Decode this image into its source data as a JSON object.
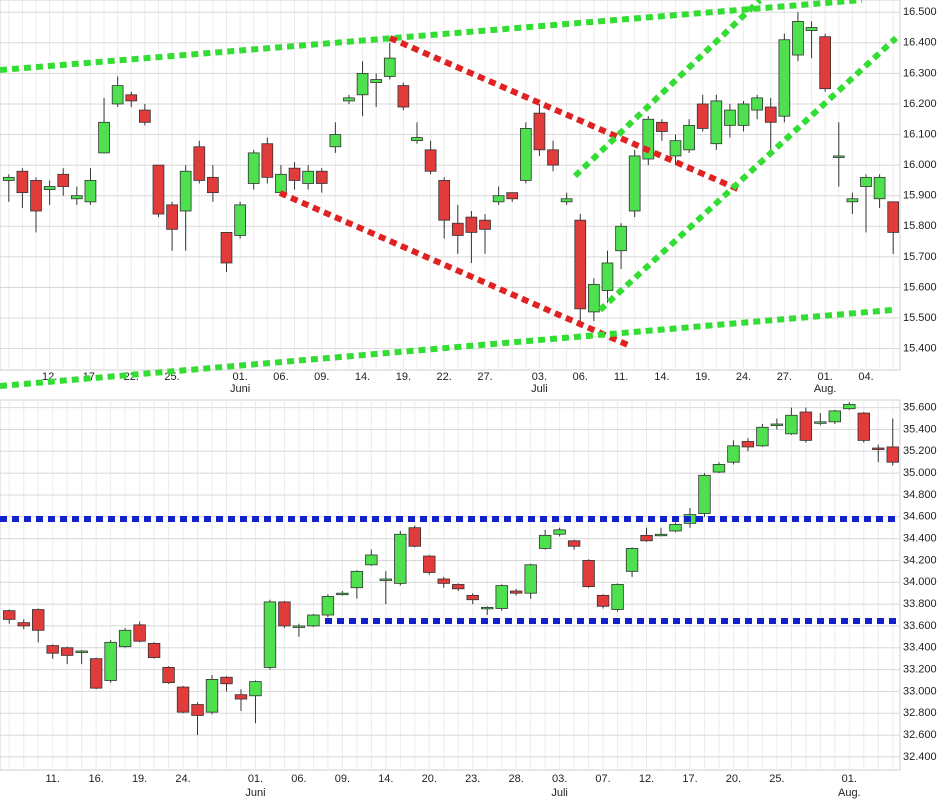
{
  "chart_data": [
    {
      "type": "candlestick",
      "categories": [
        null,
        null,
        null,
        "12.",
        null,
        null,
        "17.",
        null,
        null,
        "22.",
        null,
        null,
        "25.",
        null,
        null,
        null,
        null,
        "01.",
        null,
        null,
        "06.",
        null,
        null,
        "09.",
        null,
        null,
        "14.",
        null,
        null,
        "19.",
        null,
        null,
        "22.",
        null,
        null,
        "27.",
        null,
        null,
        null,
        "03.",
        null,
        null,
        "06.",
        null,
        null,
        "11.",
        null,
        null,
        "14.",
        null,
        null,
        "19.",
        null,
        null,
        "24.",
        null,
        null,
        "27.",
        null,
        null,
        "01.",
        null,
        null,
        "04.",
        null,
        null
      ],
      "months": [
        null,
        null,
        null,
        null,
        null,
        null,
        null,
        null,
        null,
        null,
        null,
        null,
        null,
        null,
        null,
        null,
        null,
        "Juni",
        null,
        null,
        null,
        null,
        null,
        null,
        null,
        null,
        null,
        null,
        null,
        null,
        null,
        null,
        null,
        null,
        null,
        null,
        null,
        null,
        null,
        "Juli",
        null,
        null,
        null,
        null,
        null,
        null,
        null,
        null,
        null,
        null,
        null,
        null,
        null,
        null,
        null,
        null,
        null,
        null,
        null,
        null,
        "Aug.",
        null,
        null,
        null,
        null,
        null
      ],
      "open": [
        15.95,
        15.98,
        15.95,
        15.92,
        15.97,
        15.89,
        15.88,
        16.04,
        16.2,
        16.23,
        16.18,
        16.0,
        15.87,
        15.85,
        16.06,
        15.96,
        15.78,
        15.77,
        15.94,
        16.07,
        15.91,
        15.99,
        15.94,
        15.98,
        16.06,
        16.21,
        16.23,
        16.27,
        16.29,
        16.26,
        16.08,
        16.05,
        15.95,
        15.81,
        15.83,
        15.82,
        15.88,
        15.91,
        15.95,
        16.17,
        16.05,
        15.88,
        15.82,
        15.52,
        15.59,
        15.72,
        15.85,
        16.02,
        16.14,
        16.03,
        16.05,
        16.2,
        16.07,
        16.13,
        16.13,
        16.18,
        16.19,
        16.16,
        16.36,
        16.44,
        16.42,
        16.03,
        15.88,
        15.93,
        15.89,
        15.88
      ],
      "high": [
        15.97,
        15.99,
        15.96,
        15.95,
        15.99,
        15.93,
        15.99,
        16.22,
        16.29,
        16.24,
        16.2,
        16.0,
        15.88,
        16.0,
        16.08,
        16.0,
        15.78,
        15.88,
        16.05,
        16.09,
        16.0,
        16.01,
        16.0,
        15.99,
        16.14,
        16.23,
        16.34,
        16.3,
        16.4,
        16.27,
        16.14,
        16.08,
        15.96,
        15.87,
        15.85,
        15.84,
        15.93,
        15.91,
        16.14,
        16.2,
        16.08,
        15.91,
        15.84,
        15.63,
        15.72,
        15.81,
        16.05,
        16.16,
        16.15,
        16.1,
        16.15,
        16.23,
        16.23,
        16.2,
        16.21,
        16.23,
        16.22,
        16.43,
        16.5,
        16.47,
        16.43,
        16.14,
        15.91,
        15.97,
        15.97,
        15.88
      ],
      "low": [
        15.88,
        15.86,
        15.78,
        15.87,
        15.9,
        15.87,
        15.87,
        16.04,
        16.19,
        16.19,
        16.13,
        15.83,
        15.72,
        15.72,
        15.94,
        15.88,
        15.65,
        15.76,
        15.92,
        15.94,
        15.91,
        15.92,
        15.92,
        15.91,
        16.04,
        16.2,
        16.16,
        16.19,
        16.28,
        16.18,
        16.07,
        15.97,
        15.76,
        15.71,
        15.68,
        15.71,
        15.87,
        15.88,
        15.94,
        16.03,
        15.98,
        15.87,
        15.48,
        15.49,
        15.55,
        15.66,
        15.83,
        16.0,
        16.08,
        16.0,
        16.04,
        16.11,
        16.05,
        16.09,
        16.11,
        16.15,
        16.03,
        16.14,
        16.34,
        16.35,
        16.24,
        15.93,
        15.84,
        15.78,
        15.86,
        15.71
      ],
      "close": [
        15.96,
        15.91,
        15.85,
        15.93,
        15.93,
        15.9,
        15.95,
        16.14,
        16.26,
        16.21,
        16.14,
        15.84,
        15.79,
        15.98,
        15.95,
        15.91,
        15.68,
        15.87,
        16.04,
        15.96,
        15.97,
        15.95,
        15.98,
        15.94,
        16.1,
        16.22,
        16.3,
        16.28,
        16.35,
        16.19,
        16.09,
        15.98,
        15.82,
        15.77,
        15.78,
        15.79,
        15.9,
        15.89,
        16.12,
        16.05,
        16.0,
        15.89,
        15.53,
        15.61,
        15.68,
        15.8,
        16.03,
        16.15,
        16.11,
        16.08,
        16.13,
        16.12,
        16.21,
        16.18,
        16.2,
        16.22,
        16.14,
        16.41,
        16.47,
        16.45,
        16.25,
        16.03,
        15.89,
        15.96,
        15.96,
        15.78
      ],
      "ylim": [
        15.33,
        16.54
      ],
      "yticks": [
        {
          "value": 15.4,
          "label": "15.400"
        },
        {
          "value": 15.5,
          "label": "15.500"
        },
        {
          "value": 15.6,
          "label": "15.600"
        },
        {
          "value": 15.7,
          "label": "15.700"
        },
        {
          "value": 15.8,
          "label": "15.800"
        },
        {
          "value": 15.9,
          "label": "15.900"
        },
        {
          "value": 16,
          "label": "16.000"
        },
        {
          "value": 16.1,
          "label": "16.100"
        },
        {
          "value": 16.2,
          "label": "16.200"
        },
        {
          "value": 16.3,
          "label": "16.300"
        },
        {
          "value": 16.4,
          "label": "16.400"
        },
        {
          "value": 16.5,
          "label": "16.500"
        }
      ],
      "up_color": "#4ee04e",
      "down_color": "#e23b3b",
      "grid": true
    },
    {
      "type": "candlestick",
      "categories": [
        null,
        null,
        null,
        "11.",
        null,
        null,
        "16.",
        null,
        null,
        "19.",
        null,
        null,
        "24.",
        null,
        null,
        null,
        null,
        "01.",
        null,
        null,
        "06.",
        null,
        null,
        "09.",
        null,
        null,
        "14.",
        null,
        null,
        "20.",
        null,
        null,
        "23.",
        null,
        null,
        "28.",
        null,
        null,
        "03.",
        null,
        null,
        "07.",
        null,
        null,
        "12.",
        null,
        null,
        "17.",
        null,
        null,
        "20.",
        null,
        null,
        "25.",
        null,
        null,
        null,
        null,
        "01.",
        null,
        null,
        null
      ],
      "months": [
        null,
        null,
        null,
        null,
        null,
        null,
        null,
        null,
        null,
        null,
        null,
        null,
        null,
        null,
        null,
        null,
        null,
        "Juni",
        null,
        null,
        null,
        null,
        null,
        null,
        null,
        null,
        null,
        null,
        null,
        null,
        null,
        null,
        null,
        null,
        null,
        null,
        null,
        null,
        "Juli",
        null,
        null,
        null,
        null,
        null,
        null,
        null,
        null,
        null,
        null,
        null,
        null,
        null,
        null,
        null,
        null,
        null,
        null,
        null,
        "Aug.",
        null,
        null,
        null
      ],
      "open": [
        33.74,
        33.63,
        33.75,
        33.42,
        33.4,
        33.36,
        33.3,
        33.1,
        33.41,
        33.61,
        33.44,
        33.22,
        33.04,
        32.88,
        32.81,
        33.13,
        32.97,
        32.96,
        33.22,
        33.82,
        33.59,
        33.6,
        33.7,
        33.89,
        33.95,
        34.16,
        34.02,
        33.99,
        34.5,
        34.24,
        34.03,
        33.98,
        33.88,
        33.76,
        33.76,
        33.92,
        33.9,
        34.31,
        34.44,
        34.38,
        34.2,
        33.88,
        33.75,
        34.1,
        34.43,
        34.43,
        34.47,
        34.54,
        34.63,
        35.01,
        35.1,
        35.29,
        35.25,
        35.44,
        35.36,
        35.56,
        35.46,
        35.47,
        35.59,
        35.55,
        35.23,
        35.24
      ],
      "high": [
        33.75,
        33.66,
        33.76,
        33.43,
        33.41,
        33.38,
        33.31,
        33.47,
        33.58,
        33.64,
        33.45,
        33.23,
        33.05,
        32.9,
        33.15,
        33.14,
        33.02,
        33.1,
        33.84,
        33.83,
        33.62,
        33.71,
        33.89,
        33.92,
        34.11,
        34.3,
        34.1,
        34.47,
        34.52,
        34.25,
        34.05,
        33.99,
        33.9,
        33.78,
        33.98,
        33.94,
        34.17,
        34.48,
        34.5,
        34.39,
        34.21,
        33.89,
        33.99,
        34.32,
        34.5,
        34.5,
        34.55,
        34.68,
        35.0,
        35.1,
        35.3,
        35.32,
        35.45,
        35.5,
        35.6,
        35.6,
        35.55,
        35.58,
        35.65,
        35.56,
        35.26,
        35.5
      ],
      "low": [
        33.62,
        33.57,
        33.45,
        33.3,
        33.25,
        33.25,
        33.02,
        33.08,
        33.4,
        33.45,
        33.3,
        33.07,
        32.8,
        32.6,
        32.79,
        33.0,
        32.82,
        32.71,
        33.2,
        33.58,
        33.5,
        33.59,
        33.68,
        33.88,
        33.85,
        34.15,
        33.8,
        33.97,
        34.32,
        34.07,
        33.95,
        33.92,
        33.8,
        33.7,
        33.74,
        33.88,
        33.85,
        34.3,
        34.42,
        34.3,
        33.95,
        33.76,
        33.73,
        34.05,
        34.37,
        34.42,
        34.46,
        34.5,
        34.6,
        35.0,
        35.08,
        35.2,
        35.24,
        35.4,
        35.35,
        35.28,
        35.44,
        35.45,
        35.58,
        35.28,
        35.1,
        35.07
      ],
      "close": [
        33.66,
        33.6,
        33.56,
        33.35,
        33.33,
        33.37,
        33.03,
        33.45,
        33.56,
        33.46,
        33.31,
        33.08,
        32.81,
        32.78,
        33.11,
        33.07,
        32.93,
        33.09,
        33.82,
        33.6,
        33.6,
        33.7,
        33.87,
        33.9,
        34.1,
        34.25,
        34.03,
        34.44,
        34.33,
        34.09,
        33.99,
        33.94,
        33.84,
        33.77,
        33.97,
        33.9,
        34.16,
        34.43,
        34.48,
        34.33,
        33.96,
        33.78,
        33.98,
        34.31,
        34.38,
        34.44,
        34.53,
        34.62,
        34.98,
        35.08,
        35.25,
        35.24,
        35.42,
        35.45,
        35.53,
        35.3,
        35.47,
        35.57,
        35.63,
        35.3,
        35.22,
        35.1
      ],
      "ylim": [
        32.28,
        35.67
      ],
      "yticks": [
        {
          "value": 32.4,
          "label": "32.400"
        },
        {
          "value": 32.6,
          "label": "32.600"
        },
        {
          "value": 32.8,
          "label": "32.800"
        },
        {
          "value": 33,
          "label": "33.000"
        },
        {
          "value": 33.2,
          "label": "33.200"
        },
        {
          "value": 33.4,
          "label": "33.400"
        },
        {
          "value": 33.6,
          "label": "33.600"
        },
        {
          "value": 33.8,
          "label": "33.800"
        },
        {
          "value": 34,
          "label": "34.000"
        },
        {
          "value": 34.2,
          "label": "34.200"
        },
        {
          "value": 34.4,
          "label": "34.400"
        },
        {
          "value": 34.6,
          "label": "34.600"
        },
        {
          "value": 34.8,
          "label": "34.800"
        },
        {
          "value": 35,
          "label": "35.000"
        },
        {
          "value": 35.2,
          "label": "35.200"
        },
        {
          "value": 35.4,
          "label": "35.400"
        },
        {
          "value": 35.6,
          "label": "35.600"
        }
      ],
      "up_color": "#4ee04e",
      "down_color": "#e23b3b",
      "grid": true
    }
  ]
}
